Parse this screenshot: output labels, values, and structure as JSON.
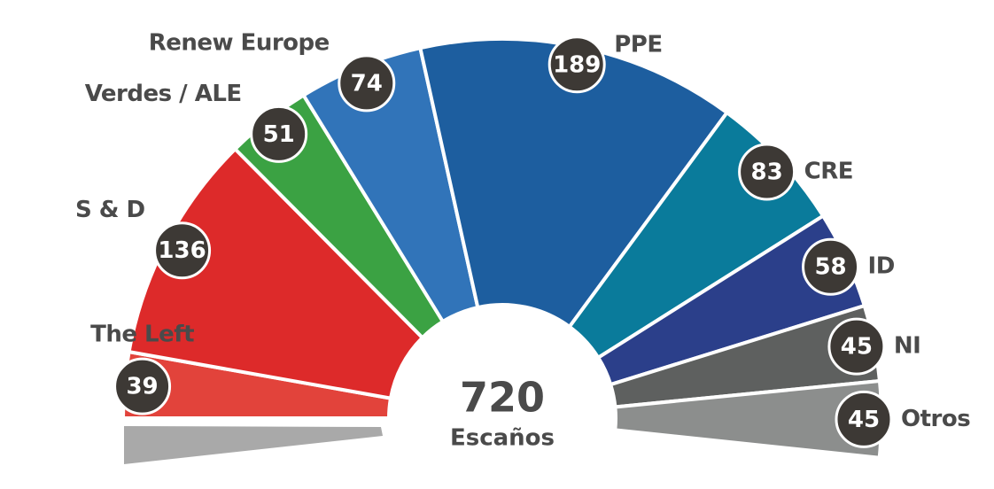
{
  "chart_data": {
    "type": "donut",
    "categories": [
      "The Left",
      "S & D",
      "Verdes / ALE",
      "Renew Europe",
      "PPE",
      "CRE",
      "ID",
      "NI",
      "Otros"
    ],
    "values": [
      39,
      136,
      51,
      74,
      189,
      83,
      58,
      45,
      45
    ],
    "colors": [
      "#e2433b",
      "#dd2a2a",
      "#3ba243",
      "#3174b9",
      "#1d5e9f",
      "#0a7b9b",
      "#2b3f8a",
      "#5e605f",
      "#8c8e8d"
    ],
    "total": 720,
    "total_label": "Escaños"
  }
}
